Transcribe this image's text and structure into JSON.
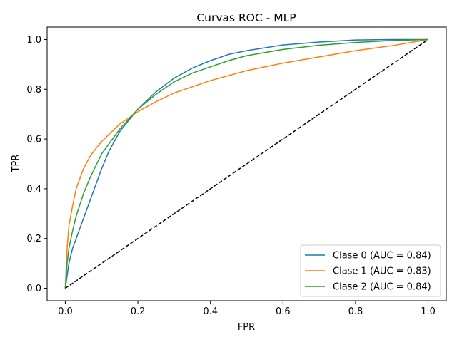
{
  "chart_data": {
    "type": "line",
    "title": "Curvas ROC - MLP",
    "xlabel": "FPR",
    "ylabel": "TPR",
    "xlim": [
      -0.05,
      1.05
    ],
    "ylim": [
      -0.05,
      1.05
    ],
    "xticks": [
      0.0,
      0.2,
      0.4,
      0.6,
      0.8,
      1.0
    ],
    "yticks": [
      0.0,
      0.2,
      0.4,
      0.6,
      0.8,
      1.0
    ],
    "xtick_labels": [
      "0.0",
      "0.2",
      "0.4",
      "0.6",
      "0.8",
      "1.0"
    ],
    "ytick_labels": [
      "0.0",
      "0.2",
      "0.4",
      "0.6",
      "0.8",
      "1.0"
    ],
    "grid": false,
    "legend_position": "bottom-right",
    "series": [
      {
        "name": "Clase 0 (AUC = 0.84)",
        "color": "#1f77b4",
        "x": [
          0.0,
          0.01,
          0.02,
          0.04,
          0.06,
          0.08,
          0.1,
          0.12,
          0.15,
          0.2,
          0.25,
          0.3,
          0.35,
          0.4,
          0.45,
          0.5,
          0.6,
          0.7,
          0.8,
          0.9,
          1.0
        ],
        "y": [
          0.0,
          0.1,
          0.16,
          0.24,
          0.32,
          0.4,
          0.48,
          0.55,
          0.63,
          0.72,
          0.79,
          0.845,
          0.885,
          0.915,
          0.94,
          0.955,
          0.978,
          0.99,
          0.998,
          1.0,
          1.0
        ]
      },
      {
        "name": "Clase 1 (AUC = 0.83)",
        "color": "#ff7f0e",
        "x": [
          0.0,
          0.005,
          0.01,
          0.02,
          0.03,
          0.05,
          0.07,
          0.1,
          0.15,
          0.2,
          0.25,
          0.3,
          0.35,
          0.4,
          0.5,
          0.6,
          0.7,
          0.8,
          0.9,
          1.0
        ],
        "y": [
          0.0,
          0.16,
          0.25,
          0.33,
          0.4,
          0.48,
          0.535,
          0.59,
          0.66,
          0.71,
          0.75,
          0.785,
          0.81,
          0.835,
          0.875,
          0.905,
          0.93,
          0.955,
          0.975,
          1.0
        ]
      },
      {
        "name": "Clase 2 (AUC = 0.84)",
        "color": "#2ca02c",
        "x": [
          0.0,
          0.005,
          0.01,
          0.02,
          0.03,
          0.05,
          0.07,
          0.1,
          0.15,
          0.2,
          0.25,
          0.3,
          0.35,
          0.4,
          0.45,
          0.5,
          0.6,
          0.7,
          0.8,
          0.9,
          1.0
        ],
        "y": [
          0.0,
          0.1,
          0.16,
          0.23,
          0.29,
          0.38,
          0.45,
          0.54,
          0.64,
          0.72,
          0.78,
          0.83,
          0.865,
          0.89,
          0.915,
          0.935,
          0.96,
          0.977,
          0.988,
          0.996,
          1.0
        ]
      },
      {
        "name": "",
        "color": "#000000",
        "style": "dashed",
        "x": [
          0.0,
          1.0
        ],
        "y": [
          0.0,
          1.0
        ]
      }
    ]
  }
}
